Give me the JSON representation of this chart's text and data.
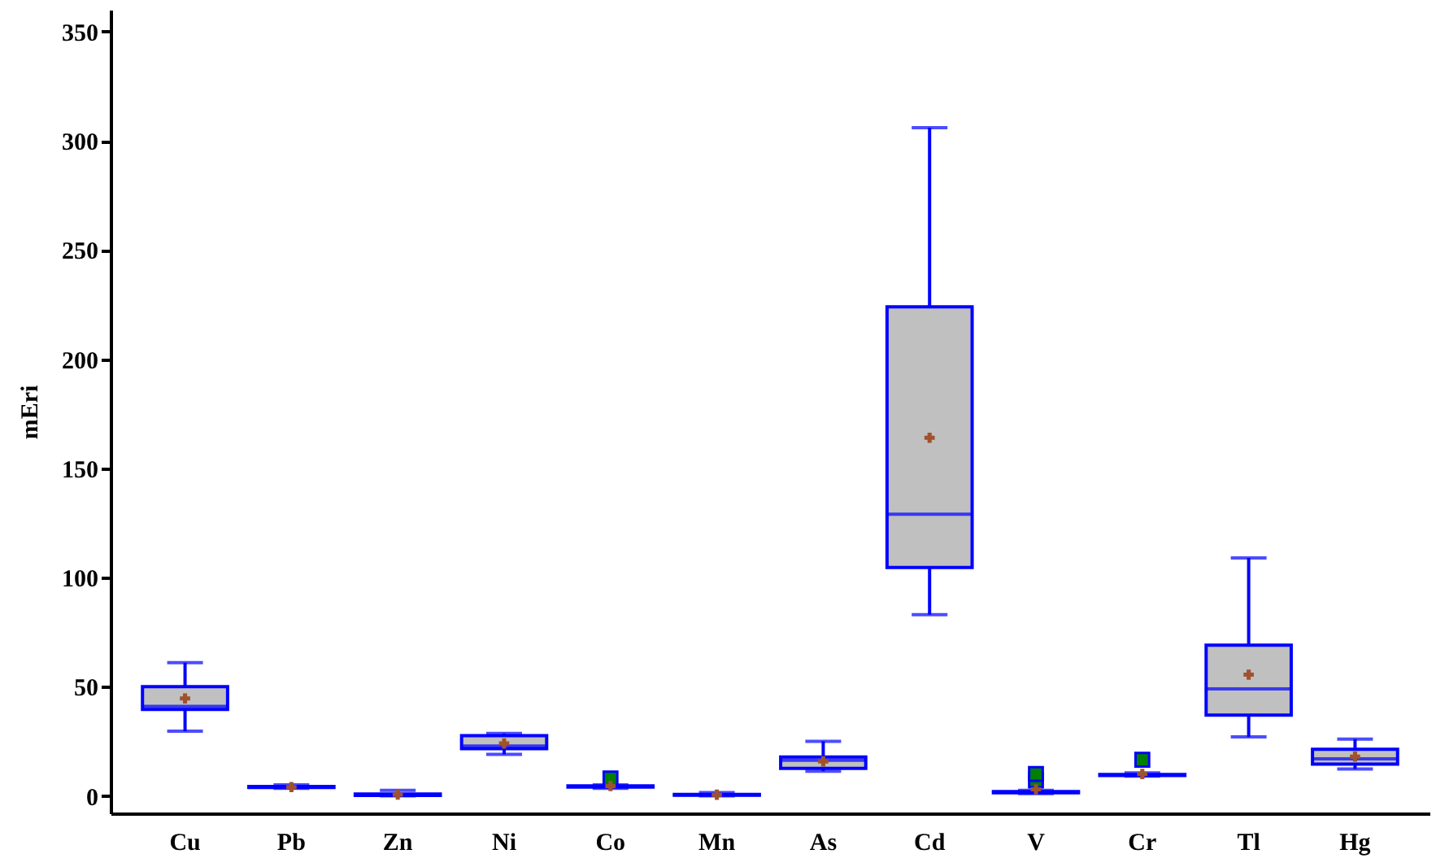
{
  "chart_data": {
    "type": "box",
    "ylabel": "mEri",
    "categories": [
      "Cu",
      "Pb",
      "Zn",
      "Ni",
      "Co",
      "Mn",
      "As",
      "Cd",
      "V",
      "Cr",
      "Tl",
      "Hg"
    ],
    "ylim": [
      -8,
      360
    ],
    "yticks": [
      0,
      50,
      100,
      150,
      200,
      250,
      300,
      350
    ],
    "grid": false,
    "series": [
      {
        "color": "#0000ff",
        "boxes": [
          {
            "low": 29.6,
            "q1": 39.6,
            "median": 41,
            "q3": 50,
            "high": 61,
            "mean": 44.6
          },
          {
            "low": 3.5,
            "q1": 3.8,
            "median": 4,
            "q3": 4.3,
            "high": 5,
            "mean": 4
          },
          {
            "low": 0,
            "q1": 0.2,
            "median": 0.5,
            "q3": 0.8,
            "high": 2.5,
            "mean": 0.6
          },
          {
            "low": 19,
            "q1": 21.6,
            "median": 22.8,
            "q3": 27.6,
            "high": 28.6,
            "mean": 24
          },
          {
            "low": 3.5,
            "q1": 4,
            "median": 4.3,
            "q3": 4.6,
            "high": 5,
            "mean": 4.5,
            "outliers": [
              8
            ]
          },
          {
            "low": 0,
            "q1": 0.3,
            "median": 0.5,
            "q3": 0.7,
            "high": 1.5,
            "mean": 0.5
          },
          {
            "low": 11.3,
            "q1": 12.6,
            "median": 16.3,
            "q3": 17.8,
            "high": 25,
            "mean": 15.8
          },
          {
            "low": 83,
            "q1": 104.6,
            "median": 129,
            "q3": 224,
            "high": 306,
            "mean": 164
          },
          {
            "low": 1,
            "q1": 1.4,
            "median": 1.7,
            "q3": 2,
            "high": 2.5,
            "mean": 3,
            "outliers": [
              7,
              10
            ]
          },
          {
            "low": 9,
            "q1": 9.3,
            "median": 9.5,
            "q3": 9.8,
            "high": 10.5,
            "mean": 10,
            "outliers": [
              16.5
            ]
          },
          {
            "low": 27,
            "q1": 37,
            "median": 49,
            "q3": 69,
            "high": 109,
            "mean": 55.5
          },
          {
            "low": 12.3,
            "q1": 14.5,
            "median": 17,
            "q3": 21.3,
            "high": 26,
            "mean": 18
          }
        ]
      }
    ]
  }
}
